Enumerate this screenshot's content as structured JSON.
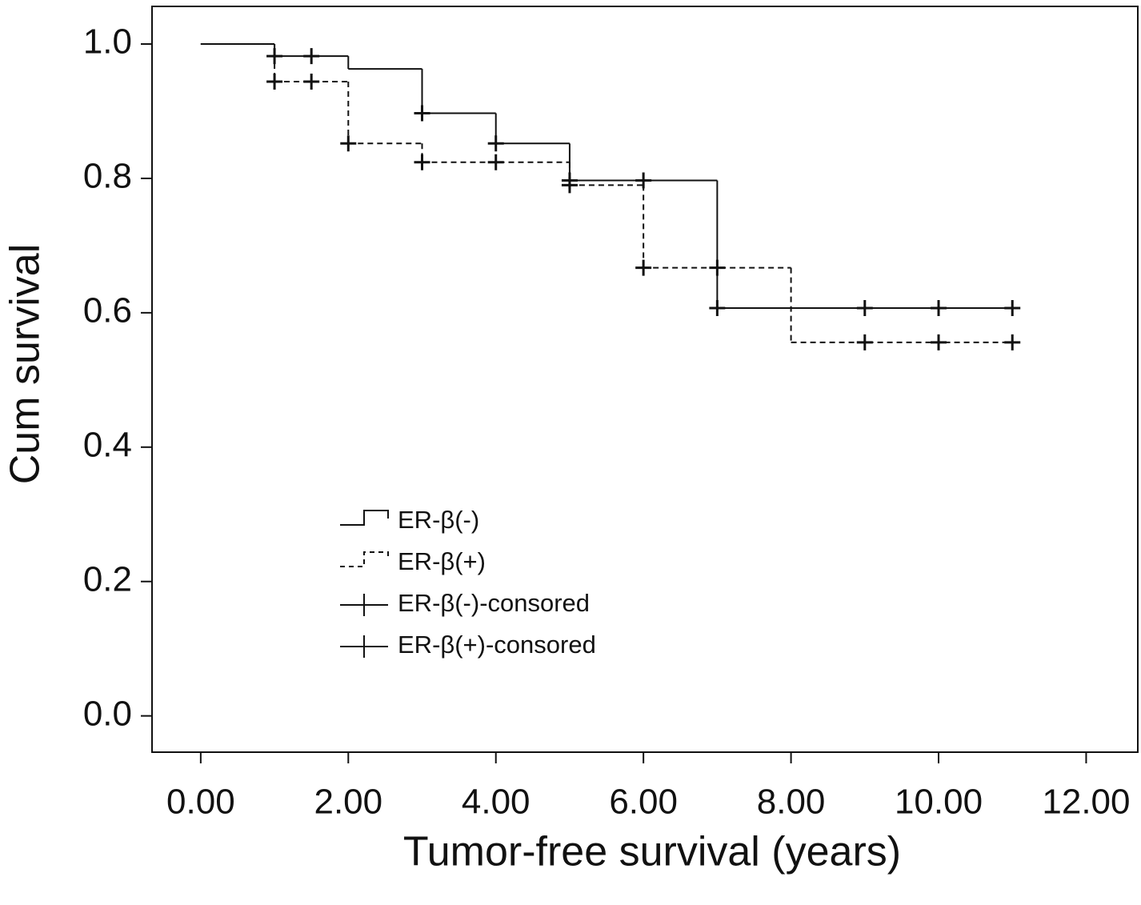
{
  "chart_data": {
    "type": "line",
    "xlabel": "Tumor-free survival (years)",
    "ylabel": "Cum survival",
    "xlim": [
      -0.66,
      12.7
    ],
    "ylim": [
      -0.054,
      1.056
    ],
    "xticks": [
      {
        "value": 0,
        "label": "0.00"
      },
      {
        "value": 2,
        "label": "2.00"
      },
      {
        "value": 4,
        "label": "4.00"
      },
      {
        "value": 6,
        "label": "6.00"
      },
      {
        "value": 8,
        "label": "8.00"
      },
      {
        "value": 10,
        "label": "10.00"
      },
      {
        "value": 12,
        "label": "12.00"
      }
    ],
    "yticks": [
      {
        "value": 0,
        "label": "0.0"
      },
      0.2,
      0.4,
      0.6,
      0.8,
      {
        "value": 1,
        "label": "1.0"
      }
    ],
    "series": [
      {
        "name": "ER-β(-)",
        "color": "#111111",
        "style": "solid",
        "x": [
          0,
          1,
          2,
          3,
          4,
          5,
          7,
          11
        ],
        "values": [
          1.0,
          0.982,
          0.963,
          0.897,
          0.852,
          0.797,
          0.607,
          0.607
        ]
      },
      {
        "name": "ER-β(+)",
        "color": "#111111",
        "style": "dashed",
        "x": [
          0,
          1,
          2,
          3,
          5,
          6,
          8,
          11
        ],
        "values": [
          1.0,
          0.944,
          0.852,
          0.824,
          0.79,
          0.667,
          0.556,
          0.556
        ]
      },
      {
        "name": "ER-β(-)-consored",
        "color": "#111111",
        "style": "censored",
        "x": [
          1,
          1.5,
          3,
          4,
          5,
          6,
          7,
          9,
          10,
          11
        ],
        "values": [
          0.982,
          0.982,
          0.897,
          0.852,
          0.797,
          0.797,
          0.607,
          0.607,
          0.607,
          0.607
        ]
      },
      {
        "name": "ER-β(+)-consored",
        "color": "#111111",
        "style": "censored",
        "x": [
          1,
          1.5,
          2,
          3,
          4,
          5,
          6,
          7,
          9,
          10,
          11
        ],
        "values": [
          0.944,
          0.944,
          0.852,
          0.824,
          0.824,
          0.79,
          0.667,
          0.667,
          0.556,
          0.556,
          0.556
        ]
      }
    ]
  }
}
